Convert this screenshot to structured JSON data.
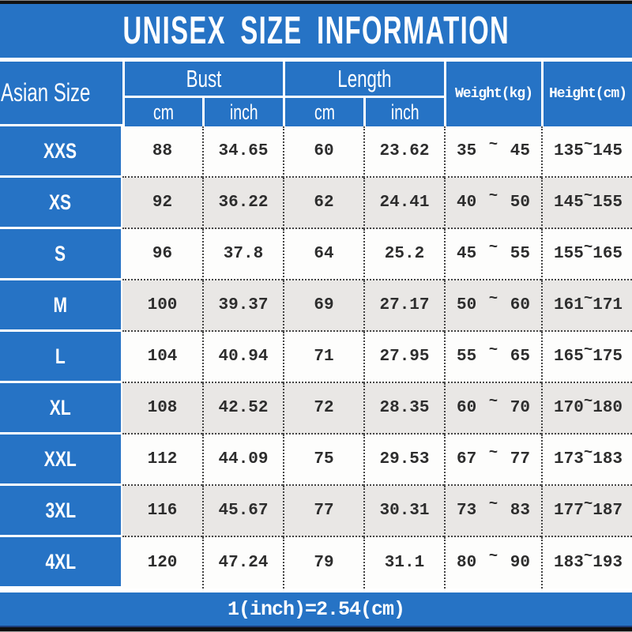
{
  "chart_data": {
    "type": "table",
    "title": "UNISEX SIZE INFORMATION",
    "header": {
      "size_column": "Asian Size",
      "bust": {
        "label": "Bust",
        "cm": "cm",
        "inch": "inch"
      },
      "length": {
        "label": "Length",
        "cm": "cm",
        "inch": "inch"
      },
      "weight": "Weight(kg)",
      "height": "Height(cm)"
    },
    "tilde": "~",
    "rows": [
      {
        "size": "XXS",
        "bust_cm": "88",
        "bust_inch": "34.65",
        "length_cm": "60",
        "length_inch": "23.62",
        "weight_min": "35",
        "weight_max": "45",
        "height_min": "135",
        "height_max": "145"
      },
      {
        "size": "XS",
        "bust_cm": "92",
        "bust_inch": "36.22",
        "length_cm": "62",
        "length_inch": "24.41",
        "weight_min": "40",
        "weight_max": "50",
        "height_min": "145",
        "height_max": "155"
      },
      {
        "size": "S",
        "bust_cm": "96",
        "bust_inch": "37.8",
        "length_cm": "64",
        "length_inch": "25.2",
        "weight_min": "45",
        "weight_max": "55",
        "height_min": "155",
        "height_max": "165"
      },
      {
        "size": "M",
        "bust_cm": "100",
        "bust_inch": "39.37",
        "length_cm": "69",
        "length_inch": "27.17",
        "weight_min": "50",
        "weight_max": "60",
        "height_min": "161",
        "height_max": "171"
      },
      {
        "size": "L",
        "bust_cm": "104",
        "bust_inch": "40.94",
        "length_cm": "71",
        "length_inch": "27.95",
        "weight_min": "55",
        "weight_max": "65",
        "height_min": "165",
        "height_max": "175"
      },
      {
        "size": "XL",
        "bust_cm": "108",
        "bust_inch": "42.52",
        "length_cm": "72",
        "length_inch": "28.35",
        "weight_min": "60",
        "weight_max": "70",
        "height_min": "170",
        "height_max": "180"
      },
      {
        "size": "XXL",
        "bust_cm": "112",
        "bust_inch": "44.09",
        "length_cm": "75",
        "length_inch": "29.53",
        "weight_min": "67",
        "weight_max": "77",
        "height_min": "173",
        "height_max": "183"
      },
      {
        "size": "3XL",
        "bust_cm": "116",
        "bust_inch": "45.67",
        "length_cm": "77",
        "length_inch": "30.31",
        "weight_min": "73",
        "weight_max": "83",
        "height_min": "177",
        "height_max": "187"
      },
      {
        "size": "4XL",
        "bust_cm": "120",
        "bust_inch": "47.24",
        "length_cm": "79",
        "length_inch": "31.1",
        "weight_min": "80",
        "weight_max": "90",
        "height_min": "183",
        "height_max": "193"
      }
    ],
    "footer": "1(inch)=2.54(cm)"
  },
  "colors": {
    "blue": "#2673c5",
    "row_alt": "#e9e7e5",
    "row_base": "#fdfdfc",
    "dotted_border": "#454545",
    "top_bottom_bar": "#121212",
    "navy_accent": "#1c3e7c"
  }
}
